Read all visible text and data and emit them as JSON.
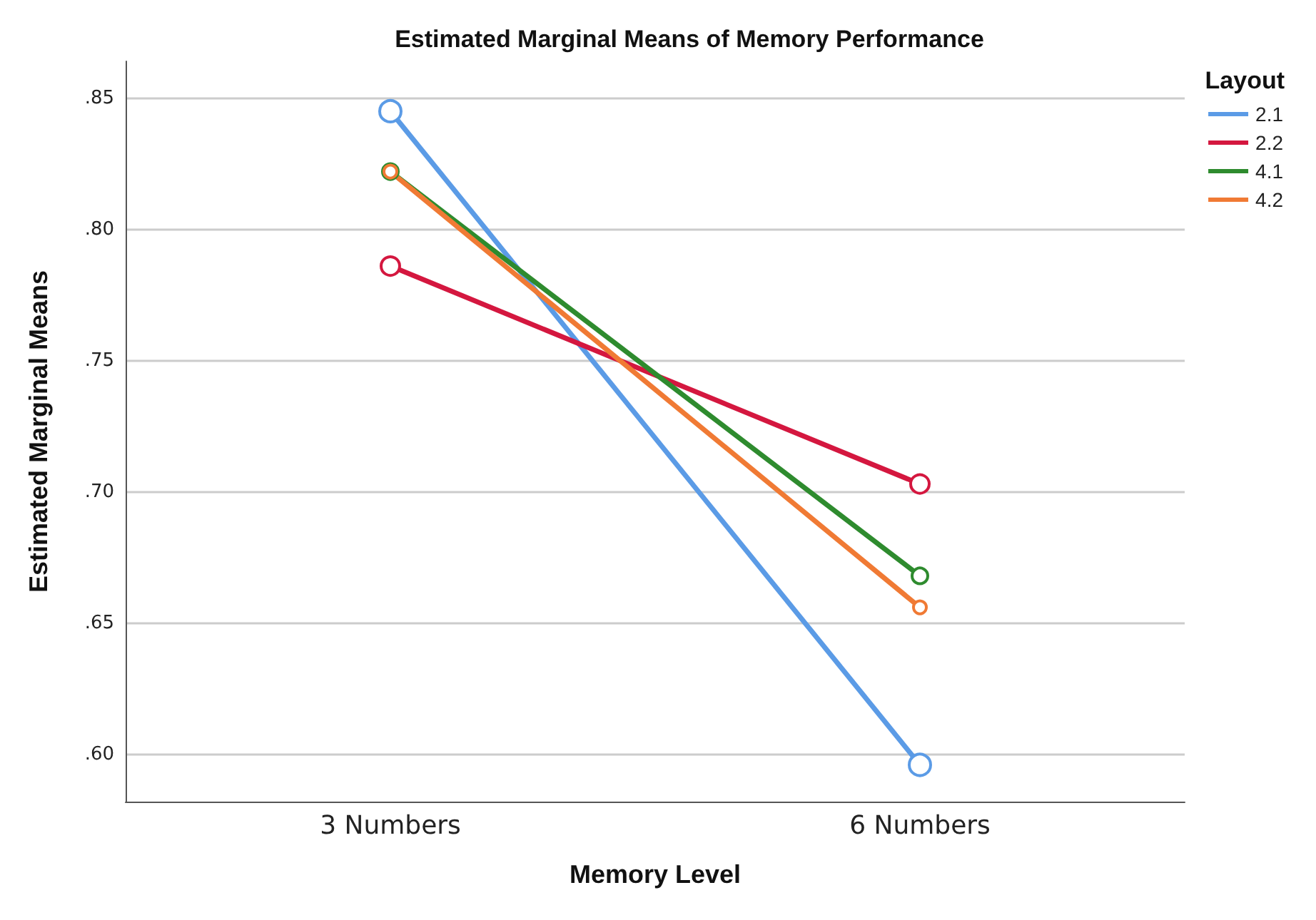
{
  "chart_data": {
    "type": "line",
    "title": "Estimated Marginal Means of Memory Performance",
    "xlabel": "Memory Level",
    "ylabel": "Estimated Marginal Means",
    "legend_title": "Layout",
    "categories": [
      "3 Numbers",
      "6 Numbers"
    ],
    "series": [
      {
        "name": "2.1",
        "color": "#5b9be6",
        "values": [
          0.845,
          0.596
        ]
      },
      {
        "name": "2.2",
        "color": "#d4173f",
        "values": [
          0.786,
          0.703
        ]
      },
      {
        "name": "4.1",
        "color": "#2e8b2e",
        "values": [
          0.822,
          0.668
        ]
      },
      {
        "name": "4.2",
        "color": "#f07a34",
        "values": [
          0.822,
          0.656
        ]
      }
    ],
    "ylim": [
      0.582,
      0.864
    ],
    "yticks": [
      {
        "value": 0.6,
        "label": ".60"
      },
      {
        "value": 0.65,
        "label": ".65"
      },
      {
        "value": 0.7,
        "label": ".70"
      },
      {
        "value": 0.75,
        "label": ".75"
      },
      {
        "value": 0.8,
        "label": ".80"
      },
      {
        "value": 0.85,
        "label": ".85"
      }
    ],
    "grid": "y",
    "legend": "top right",
    "marker": "circle",
    "line_style": "solid"
  }
}
